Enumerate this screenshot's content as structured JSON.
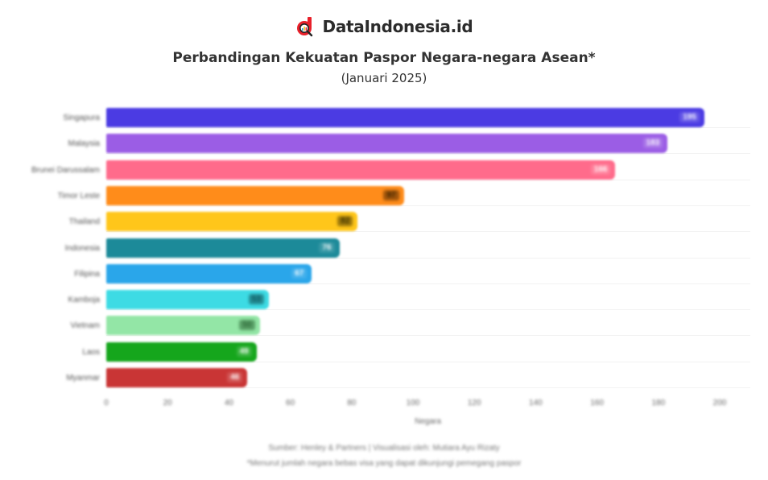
{
  "brand": {
    "name": "DataIndonesia.id",
    "logo_icon": "magnifier-chart-icon",
    "logo_color": "#e8202a"
  },
  "header": {
    "title": "Perbandingan Kekuatan Paspor Negara-negara Asean*",
    "subtitle": "(Januari 2025)"
  },
  "footer": {
    "source": "Sumber: Henley & Partners | Visualisasi oleh: Mutiara Ayu Rizaty",
    "note": "*Menurut jumlah negara bebas visa yang dapat dikunjungi pemegang paspor"
  },
  "chart_data": {
    "type": "bar",
    "orientation": "horizontal",
    "title": "Perbandingan Kekuatan Paspor Negara-negara Asean*",
    "subtitle": "(Januari 2025)",
    "xlabel": "Negara",
    "ylabel": "",
    "xlim": [
      0,
      210
    ],
    "x_ticks": [
      "0",
      "20",
      "40",
      "60",
      "80",
      "100",
      "120",
      "140",
      "160",
      "180",
      "200"
    ],
    "grid": true,
    "legend": "none",
    "categories": [
      "Singapura",
      "Malaysia",
      "Brunei Darussalam",
      "Timor Leste",
      "Thailand",
      "Indonesia",
      "Filipina",
      "Kamboja",
      "Vietnam",
      "Laos",
      "Myanmar"
    ],
    "values": [
      195,
      183,
      166,
      97,
      82,
      76,
      67,
      53,
      50,
      49,
      46
    ],
    "colors": [
      "#4b3be3",
      "#9b5de5",
      "#ff6b8b",
      "#ff8c1a",
      "#ffc61a",
      "#1c8a99",
      "#2aa6ea",
      "#3ddbe4",
      "#93e6a6",
      "#15a61c",
      "#c93535"
    ],
    "value_label_colors": [
      "#ffffff",
      "#ffffff",
      "#ffffff",
      "#3a2000",
      "#3a3000",
      "#ffffff",
      "#ffffff",
      "#0f5a60",
      "#2f6b3a",
      "#ffffff",
      "#ffffff"
    ],
    "value_label_bg": [
      "rgba(255,255,255,0.15)",
      "rgba(255,255,255,0.15)",
      "rgba(255,255,255,0.15)",
      "rgba(80,40,0,0.55)",
      "rgba(80,60,0,0.55)",
      "rgba(255,255,255,0.12)",
      "rgba(255,255,255,0.12)",
      "rgba(20,90,95,0.6)",
      "rgba(40,100,50,0.55)",
      "rgba(255,255,255,0.15)",
      "rgba(255,255,255,0.15)"
    ],
    "source": "Sumber: Henley & Partners | Visualisasi oleh: Mutiara Ayu Rizaty",
    "note": "*Menurut jumlah negara bebas visa yang dapat dikunjungi pemegang paspor"
  }
}
